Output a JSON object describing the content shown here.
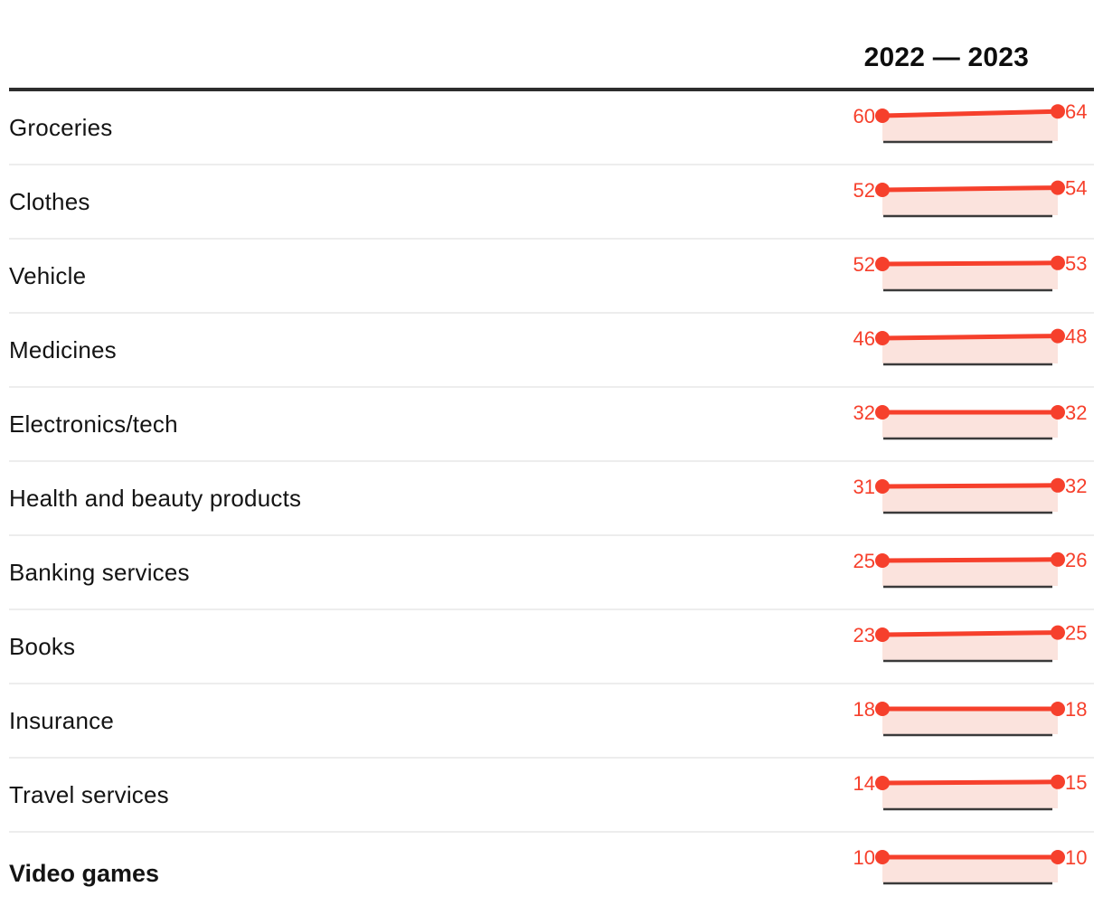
{
  "header": {
    "period_label": "2022 — 2023"
  },
  "chart_data": {
    "type": "line",
    "title": "2022 — 2023",
    "x_labels": [
      "2022",
      "2023"
    ],
    "grid": false,
    "legend_position": "top-right",
    "series": [
      {
        "name": "Groceries",
        "values": [
          60,
          64
        ]
      },
      {
        "name": "Clothes",
        "values": [
          52,
          54
        ]
      },
      {
        "name": "Vehicle",
        "values": [
          52,
          53
        ]
      },
      {
        "name": "Medicines",
        "values": [
          46,
          48
        ]
      },
      {
        "name": "Electronics/tech",
        "values": [
          32,
          32
        ]
      },
      {
        "name": "Health and beauty products",
        "values": [
          31,
          32
        ]
      },
      {
        "name": "Banking services",
        "values": [
          25,
          26
        ]
      },
      {
        "name": "Books",
        "values": [
          23,
          25
        ]
      },
      {
        "name": "Insurance",
        "values": [
          18,
          18
        ]
      },
      {
        "name": "Travel services",
        "values": [
          14,
          15
        ]
      },
      {
        "name": "Video games",
        "values": [
          10,
          10
        ],
        "emphasis": true
      }
    ],
    "colors": {
      "accent": "#f6402c",
      "fill": "#fbe3dd",
      "baseline": "#3a3a3a",
      "rule": "#2d2d2d",
      "separator": "#ededed",
      "text": "#141414"
    }
  }
}
